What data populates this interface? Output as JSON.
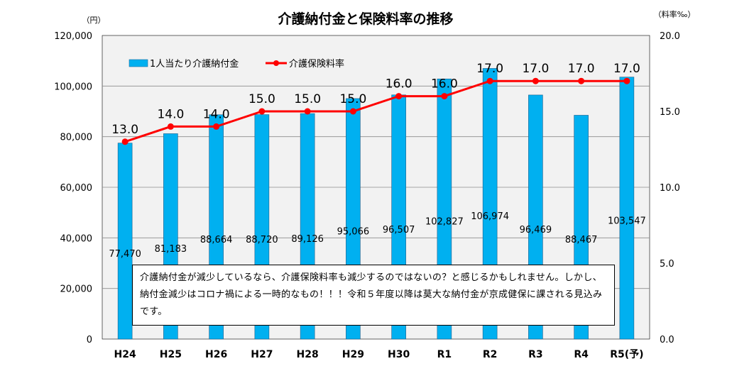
{
  "chart_data": {
    "type": "bar+line",
    "title": "介護納付金と保険料率の推移",
    "categories": [
      "H24",
      "H25",
      "H26",
      "H27",
      "H28",
      "H29",
      "H30",
      "R1",
      "R2",
      "R3",
      "R4",
      "R5(予)"
    ],
    "series": [
      {
        "name": "1人当たり介護納付金",
        "type": "bar",
        "axis": "left",
        "color": "#00B0F0",
        "values": [
          77470,
          81183,
          88664,
          88720,
          89126,
          95066,
          96507,
          102827,
          106974,
          96469,
          88467,
          103547
        ],
        "labels": [
          "77,470",
          "81,183",
          "88,664",
          "88,720",
          "89,126",
          "95,066",
          "96,507",
          "102,827",
          "106,974",
          "96,469",
          "88,467",
          "103,547"
        ]
      },
      {
        "name": "介護保険料率",
        "type": "line",
        "axis": "right",
        "color": "#FF0000",
        "values": [
          13.0,
          14.0,
          14.0,
          15.0,
          15.0,
          15.0,
          16.0,
          16.0,
          17.0,
          17.0,
          17.0,
          17.0
        ],
        "labels": [
          "13.0",
          "14.0",
          "14.0",
          "15.0",
          "15.0",
          "15.0",
          "16.0",
          "16.0",
          "17.0",
          "17.0",
          "17.0",
          "17.0"
        ]
      }
    ],
    "y_left": {
      "unit": "（円）",
      "ylim": [
        0,
        120000
      ],
      "ticks": [
        0,
        20000,
        40000,
        60000,
        80000,
        100000,
        120000
      ],
      "tick_labels": [
        "0",
        "20,000",
        "40,000",
        "60,000",
        "80,000",
        "100,000",
        "120,000"
      ]
    },
    "y_right": {
      "unit": "（料率‰）",
      "ylim": [
        0,
        20
      ],
      "ticks": [
        0,
        5,
        10,
        15,
        20
      ],
      "tick_labels": [
        "0.0",
        "5.0",
        "10.0",
        "15.0",
        "20.0"
      ]
    },
    "grid": true,
    "legend": "top-left"
  },
  "note": {
    "text": "介護納付金が減少しているなら、介護保険料率も減少するのではないの？と感じるかもしれません。しかし、納付金減少はコロナ禍による一時的なもの！！！令和５年度以降は莫大な納付金が京成健保に課される見込みです。"
  }
}
